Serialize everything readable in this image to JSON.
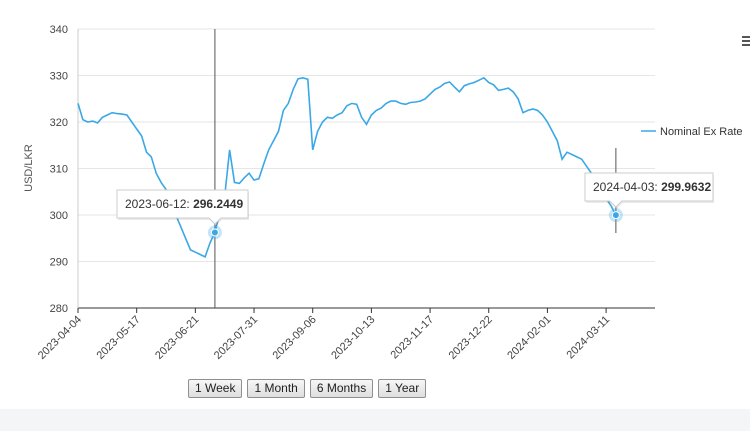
{
  "chart_data": {
    "type": "line",
    "ylabel": "USD/LKR",
    "xlabel": "",
    "ylim": [
      280,
      340
    ],
    "yticks": [
      280,
      290,
      300,
      310,
      320,
      330,
      340
    ],
    "xtick_labels": [
      "2023-04-04",
      "2023-05-17",
      "2023-06-21",
      "2023-07-31",
      "2023-09-06",
      "2023-10-13",
      "2023-11-17",
      "2023-12-22",
      "2024-02-01",
      "2024-03-11"
    ],
    "grid": true,
    "legend_position": "right",
    "series": [
      {
        "name": "Nominal Ex Rate",
        "color": "#3aa8e6",
        "values": [
          [
            0,
            324.0
          ],
          [
            1,
            320.5
          ],
          [
            2,
            320.0
          ],
          [
            3,
            320.2
          ],
          [
            4,
            319.8
          ],
          [
            5,
            321.0
          ],
          [
            6,
            321.5
          ],
          [
            7,
            322.0
          ],
          [
            8,
            321.8
          ],
          [
            9,
            321.7
          ],
          [
            10,
            321.5
          ],
          [
            11,
            320.0
          ],
          [
            12,
            318.5
          ],
          [
            13,
            317.0
          ],
          [
            14,
            313.5
          ],
          [
            15,
            312.5
          ],
          [
            16,
            309.0
          ],
          [
            17,
            307.0
          ],
          [
            18,
            305.5
          ],
          [
            19,
            304.0
          ],
          [
            20,
            300.0
          ],
          [
            21,
            297.5
          ],
          [
            22,
            295.0
          ],
          [
            23,
            292.5
          ],
          [
            24,
            292.0
          ],
          [
            25,
            291.5
          ],
          [
            26,
            291.0
          ],
          [
            27,
            294.0
          ],
          [
            28,
            296.2449
          ],
          [
            29,
            300.5
          ],
          [
            30,
            304.0
          ],
          [
            31,
            314.0
          ],
          [
            32,
            307.0
          ],
          [
            33,
            306.8
          ],
          [
            34,
            308.0
          ],
          [
            35,
            309.0
          ],
          [
            36,
            307.5
          ],
          [
            37,
            307.8
          ],
          [
            38,
            311.0
          ],
          [
            39,
            314.0
          ],
          [
            40,
            316.0
          ],
          [
            41,
            318.0
          ],
          [
            42,
            322.5
          ],
          [
            43,
            324.0
          ],
          [
            44,
            327.0
          ],
          [
            45,
            329.3
          ],
          [
            46,
            329.5
          ],
          [
            47,
            329.2
          ],
          [
            48,
            314.0
          ],
          [
            49,
            318.0
          ],
          [
            50,
            320.0
          ],
          [
            51,
            321.0
          ],
          [
            52,
            320.8
          ],
          [
            53,
            321.5
          ],
          [
            54,
            322.0
          ],
          [
            55,
            323.5
          ],
          [
            56,
            324.0
          ],
          [
            57,
            323.8
          ],
          [
            58,
            321.0
          ],
          [
            59,
            319.5
          ],
          [
            60,
            321.5
          ],
          [
            61,
            322.5
          ],
          [
            62,
            323.0
          ],
          [
            63,
            324.0
          ],
          [
            64,
            324.5
          ],
          [
            65,
            324.5
          ],
          [
            66,
            324.0
          ],
          [
            67,
            323.8
          ],
          [
            68,
            324.2
          ],
          [
            69,
            324.3
          ],
          [
            70,
            324.5
          ],
          [
            71,
            325.0
          ],
          [
            72,
            326.0
          ],
          [
            73,
            327.0
          ],
          [
            74,
            327.5
          ],
          [
            75,
            328.3
          ],
          [
            76,
            328.6
          ],
          [
            77,
            327.5
          ],
          [
            78,
            326.5
          ],
          [
            79,
            327.8
          ],
          [
            80,
            328.2
          ],
          [
            81,
            328.5
          ],
          [
            82,
            329.0
          ],
          [
            83,
            329.5
          ],
          [
            84,
            328.5
          ],
          [
            85,
            328.0
          ],
          [
            86,
            326.8
          ],
          [
            87,
            327.0
          ],
          [
            88,
            327.3
          ],
          [
            89,
            326.5
          ],
          [
            90,
            325.0
          ],
          [
            91,
            322.0
          ],
          [
            92,
            322.5
          ],
          [
            93,
            322.8
          ],
          [
            94,
            322.5
          ],
          [
            95,
            321.5
          ],
          [
            96,
            320.0
          ],
          [
            97,
            318.0
          ],
          [
            98,
            316.0
          ],
          [
            99,
            312.0
          ],
          [
            100,
            313.5
          ],
          [
            101,
            313.0
          ],
          [
            102,
            312.5
          ],
          [
            103,
            312.0
          ],
          [
            104,
            310.5
          ],
          [
            105,
            309.0
          ],
          [
            106,
            307.0
          ],
          [
            107,
            305.0
          ],
          [
            108,
            303.5
          ],
          [
            109,
            302.0
          ],
          [
            110,
            299.9632
          ]
        ]
      }
    ],
    "tooltips": [
      {
        "date": "2023-06-12:",
        "value": "296.2449"
      },
      {
        "date": "2024-04-03:",
        "value": "299.9632"
      }
    ]
  },
  "range_buttons": [
    "1 Week",
    "1 Month",
    "6 Months",
    "1 Year"
  ],
  "colors": {
    "series": "#3aa8e6",
    "grid": "#e6e6e6",
    "axis": "#333333",
    "crosshair": "#555555"
  }
}
